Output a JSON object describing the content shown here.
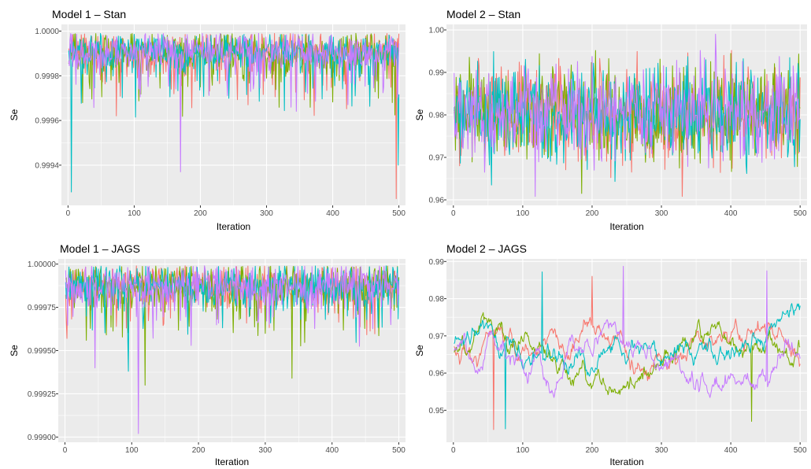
{
  "colors": {
    "panel_bg": "#ebebeb",
    "grid_major": "#ffffff",
    "series": [
      "#f8766d",
      "#7cae00",
      "#00bfc4",
      "#c77cff"
    ]
  },
  "chart_data": [
    {
      "type": "line",
      "title": "Model 1 – Stan",
      "xlabel": "Iteration",
      "ylabel": "Se",
      "xlim": [
        -10,
        510
      ],
      "ylim": [
        0.99922,
        1.00003
      ],
      "xticks": [
        0,
        100,
        200,
        300,
        400,
        500
      ],
      "xtick_labels": [
        "0",
        "100",
        "200",
        "300",
        "400",
        "500"
      ],
      "yticks": [
        0.9994,
        0.9996,
        0.9998,
        1.0
      ],
      "ytick_labels": [
        "0.9994",
        "0.9996",
        "0.9998",
        "1.0000"
      ],
      "iterations": 500,
      "grid": true,
      "legend": "none",
      "sampler": {
        "center": 0.99991,
        "spread": 4e-05,
        "upper": 0.99999,
        "lower": 0.99945,
        "drop_prob": 0.18,
        "drop_depth": 0.00022,
        "walk": 0.0,
        "corr": 0.0
      },
      "series": [
        {
          "seed": 11,
          "extremes": [
            [
              496,
              0.99925
            ]
          ]
        },
        {
          "seed": 23,
          "extremes": [
            [
              490,
              0.99968
            ]
          ]
        },
        {
          "seed": 37,
          "extremes": [
            [
              5,
              0.99928
            ],
            [
              499,
              0.9994
            ]
          ]
        },
        {
          "seed": 53,
          "extremes": [
            [
              170,
              0.99937
            ]
          ]
        }
      ]
    },
    {
      "type": "line",
      "title": "Model 2 – Stan",
      "xlabel": "Iteration",
      "ylabel": "Se",
      "xlim": [
        -10,
        510
      ],
      "ylim": [
        0.9587,
        1.0013
      ],
      "xticks": [
        0,
        100,
        200,
        300,
        400,
        500
      ],
      "xtick_labels": [
        "0",
        "100",
        "200",
        "300",
        "400",
        "500"
      ],
      "yticks": [
        0.96,
        0.97,
        0.98,
        0.99,
        1.0
      ],
      "ytick_labels": [
        "0.96",
        "0.97",
        "0.98",
        "0.99",
        "1.00"
      ],
      "iterations": 500,
      "grid": true,
      "legend": "none",
      "sampler": {
        "center": 0.9805,
        "spread": 0.0055,
        "upper": 0.9985,
        "lower": 0.9605,
        "drop_prob": 0.0,
        "drop_depth": 0.0,
        "walk": 0.0,
        "corr": 0.0
      },
      "series": [
        {
          "seed": 71,
          "extremes": [
            [
              330,
              0.9608
            ]
          ]
        },
        {
          "seed": 83,
          "extremes": [
            [
              185,
              0.9615
            ]
          ]
        },
        {
          "seed": 97,
          "extremes": [
            [
              55,
              0.9635
            ]
          ]
        },
        {
          "seed": 109,
          "extremes": [
            [
              378,
              0.999
            ],
            [
              118,
              0.9608
            ]
          ]
        }
      ]
    },
    {
      "type": "line",
      "title": "Model 1 – JAGS",
      "xlabel": "Iteration",
      "ylabel": "Se",
      "xlim": [
        -10,
        510
      ],
      "ylim": [
        0.99897,
        1.00003
      ],
      "xticks": [
        0,
        100,
        200,
        300,
        400,
        500
      ],
      "xtick_labels": [
        "0",
        "100",
        "200",
        "300",
        "400",
        "500"
      ],
      "yticks": [
        0.999,
        0.99925,
        0.9995,
        0.99975,
        1.0
      ],
      "ytick_labels": [
        "0.99900",
        "0.99925",
        "0.99950",
        "0.99975",
        "1.00000"
      ],
      "iterations": 500,
      "grid": true,
      "legend": "none",
      "sampler": {
        "center": 0.99988,
        "spread": 6e-05,
        "upper": 0.99999,
        "lower": 0.99935,
        "drop_prob": 0.14,
        "drop_depth": 0.00028,
        "walk": 0.0,
        "corr": 0.0
      },
      "series": [
        {
          "seed": 131,
          "extremes": [
            [
              3,
              0.99957
            ]
          ]
        },
        {
          "seed": 149,
          "extremes": [
            [
              120,
              0.9993
            ],
            [
              340,
              0.99934
            ]
          ]
        },
        {
          "seed": 163,
          "extremes": [
            [
              95,
              0.99938
            ]
          ]
        },
        {
          "seed": 179,
          "extremes": [
            [
              110,
              0.99902
            ],
            [
              45,
              0.9994
            ]
          ]
        }
      ]
    },
    {
      "type": "line",
      "title": "Model 2 – JAGS",
      "xlabel": "Iteration",
      "ylabel": "Se",
      "xlim": [
        -10,
        510
      ],
      "ylim": [
        0.9414,
        0.9907
      ],
      "xticks": [
        0,
        100,
        200,
        300,
        400,
        500
      ],
      "xtick_labels": [
        "0",
        "100",
        "200",
        "300",
        "400",
        "500"
      ],
      "yticks": [
        0.95,
        0.96,
        0.97,
        0.98,
        0.99
      ],
      "ytick_labels": [
        "0.95",
        "0.96",
        "0.97",
        "0.98",
        "0.99"
      ],
      "iterations": 500,
      "grid": true,
      "legend": "none",
      "sampler": {
        "center": 0.9665,
        "spread": 0.003,
        "upper": 0.9885,
        "lower": 0.9445,
        "drop_prob": 0.0,
        "drop_depth": 0.0,
        "walk": 0.0016,
        "corr": 0.93
      },
      "series": [
        {
          "seed": 191,
          "extremes": [
            [
              58,
              0.9448
            ],
            [
              200,
              0.986
            ]
          ]
        },
        {
          "seed": 211,
          "extremes": [
            [
              430,
              0.947
            ]
          ]
        },
        {
          "seed": 223,
          "extremes": [
            [
              128,
              0.9872
            ],
            [
              75,
              0.945
            ]
          ]
        },
        {
          "seed": 241,
          "extremes": [
            [
              245,
              0.9887
            ],
            [
              452,
              0.9875
            ]
          ]
        }
      ]
    }
  ]
}
